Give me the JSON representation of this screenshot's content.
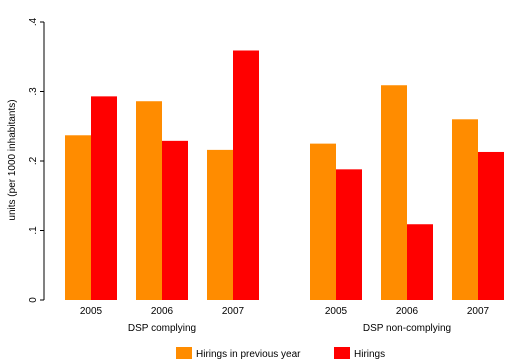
{
  "chart_data": {
    "type": "bar",
    "ylabel": "units (per 1000 inhabitants)",
    "ylim": [
      0,
      0.4
    ],
    "yticks": [
      {
        "value": 0,
        "label": "0"
      },
      {
        "value": 0.1,
        "label": ".1"
      },
      {
        "value": 0.2,
        "label": ".2"
      },
      {
        "value": 0.3,
        "label": ".3"
      },
      {
        "value": 0.4,
        "label": ".4"
      }
    ],
    "groups": [
      {
        "label": "DSP complying",
        "categories": [
          "2005",
          "2006",
          "2007"
        ]
      },
      {
        "label": "DSP non-complying",
        "categories": [
          "2005",
          "2006",
          "2007"
        ]
      }
    ],
    "series": [
      {
        "name": "Hirings in previous year",
        "color": "#FF8C00",
        "values": [
          [
            0.237,
            0.286,
            0.216
          ],
          [
            0.225,
            0.309,
            0.26
          ]
        ]
      },
      {
        "name": "Hirings",
        "color": "#FF0000",
        "values": [
          [
            0.293,
            0.229,
            0.359
          ],
          [
            0.188,
            0.109,
            0.213
          ]
        ]
      }
    ],
    "grid": false,
    "legend_position": "bottom"
  }
}
